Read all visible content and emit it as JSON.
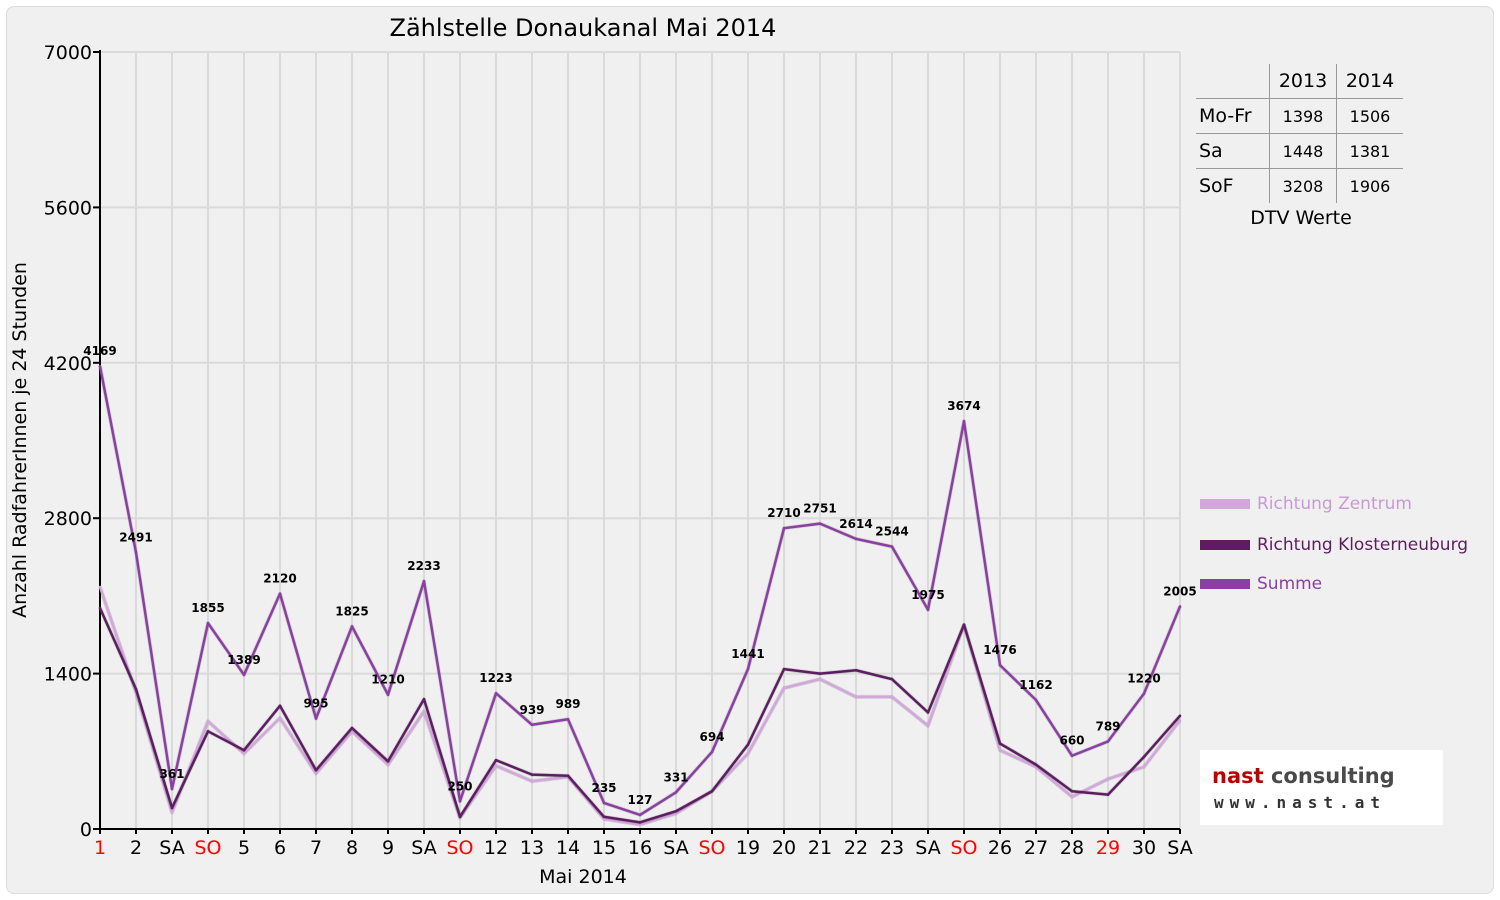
{
  "colors": {
    "zentrum": "#d3a6dc",
    "klosterneuburg": "#5c1e61",
    "summe": "#8b3fa3",
    "weekend_red": "#ff0000"
  },
  "chart_data": {
    "type": "line",
    "title": "Zählstelle Donaukanal Mai 2014",
    "xlabel": "Mai 2014",
    "ylabel": "Anzahl RadfahrerInnen je 24 Stunden",
    "ylim": [
      0,
      7000
    ],
    "yticks": [
      "0",
      "1400",
      "2800",
      "4200",
      "5600",
      "7000"
    ],
    "categories": [
      "1",
      "2",
      "SA",
      "SO",
      "5",
      "6",
      "7",
      "8",
      "9",
      "SA",
      "SO",
      "12",
      "13",
      "14",
      "15",
      "16",
      "SA",
      "SO",
      "19",
      "20",
      "21",
      "22",
      "23",
      "SA",
      "SO",
      "26",
      "27",
      "28",
      "29",
      "30",
      "SA"
    ],
    "red_categories": [
      "1",
      "SO",
      "29"
    ],
    "grid": true,
    "legend_position": "right",
    "series": [
      {
        "name": "Richtung Zentrum",
        "color": "#d3a6dc",
        "values": [
          2180,
          1230,
          150,
          970,
          680,
          1000,
          500,
          880,
          580,
          1060,
          100,
          570,
          430,
          470,
          90,
          40,
          140,
          340,
          680,
          1270,
          1350,
          1190,
          1190,
          930,
          1840,
          710,
          560,
          290,
          450,
          560,
          980
        ]
      },
      {
        "name": "Richtung Klosterneuburg",
        "color": "#5c1e61",
        "values": [
          1990,
          1260,
          190,
          880,
          710,
          1110,
          530,
          910,
          610,
          1170,
          110,
          620,
          490,
          480,
          110,
          60,
          160,
          340,
          760,
          1440,
          1400,
          1430,
          1350,
          1050,
          1840,
          770,
          580,
          340,
          310,
          650,
          1020
        ]
      },
      {
        "name": "Summe",
        "color": "#8b3fa3",
        "values": [
          4169,
          2491,
          361,
          1855,
          1389,
          2120,
          995,
          1825,
          1210,
          2233,
          250,
          1223,
          939,
          989,
          235,
          127,
          331,
          694,
          1441,
          2710,
          2751,
          2614,
          2544,
          1975,
          3674,
          1476,
          1162,
          660,
          789,
          1220,
          2005
        ]
      }
    ],
    "data_labels": [
      "4169",
      "2491",
      "361",
      "1855",
      "1389",
      "2120",
      "995",
      "1825",
      "1210",
      "2233",
      "250",
      "1223",
      "939",
      "989",
      "235",
      "127",
      "331",
      "694",
      "1441",
      "2710",
      "2751",
      "2614",
      "2544",
      "1975",
      "3674",
      "1476",
      "1162",
      "660",
      "789",
      "1220",
      "2005"
    ]
  },
  "dtv": {
    "caption": "DTV Werte",
    "years": [
      "2013",
      "2014"
    ],
    "rows": [
      {
        "label": "Mo-Fr",
        "v2013": "1398",
        "v2014": "1506"
      },
      {
        "label": "Sa",
        "v2013": "1448",
        "v2014": "1381"
      },
      {
        "label": "SoF",
        "v2013": "3208",
        "v2014": "1906"
      }
    ]
  },
  "legend": [
    {
      "label": "Richtung Zentrum",
      "color": "#d3a6dc"
    },
    {
      "label": "Richtung Klosterneuburg",
      "color": "#5c1e61"
    },
    {
      "label": "Summe",
      "color": "#8b3fa3"
    }
  ],
  "logo": {
    "brand_red": "nast",
    "brand_rest": " consulting",
    "url": "www.nast.at"
  }
}
